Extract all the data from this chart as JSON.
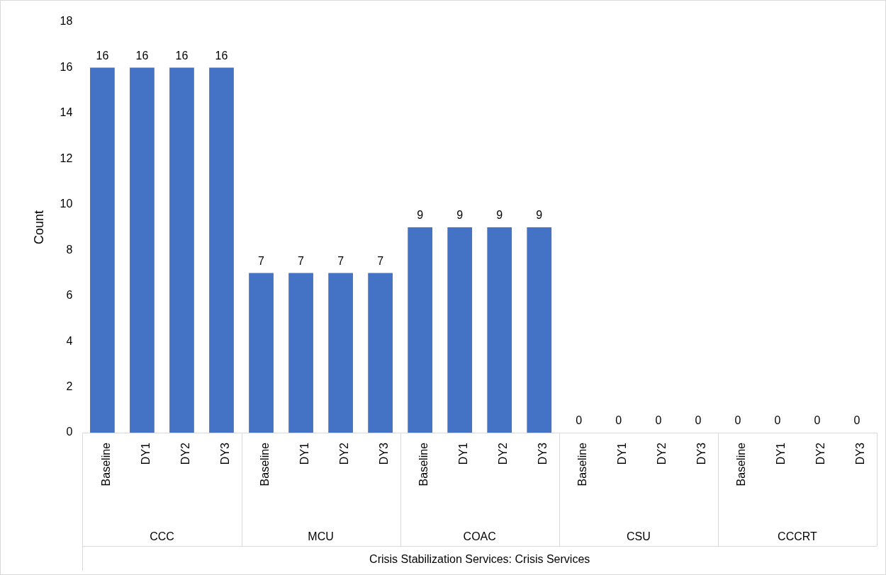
{
  "chart_data": {
    "type": "bar",
    "categories": [
      "Baseline",
      "DY1",
      "DY2",
      "DY3",
      "Baseline",
      "DY1",
      "DY2",
      "DY3",
      "Baseline",
      "DY1",
      "DY2",
      "DY3",
      "Baseline",
      "DY1",
      "DY2",
      "DY3",
      "Baseline",
      "DY1",
      "DY2",
      "DY3"
    ],
    "values": [
      16,
      16,
      16,
      16,
      7,
      7,
      7,
      7,
      9,
      9,
      9,
      9,
      0,
      0,
      0,
      0,
      0,
      0,
      0,
      0
    ],
    "color": "#4472c4",
    "ylabel": "Count",
    "annotations": [
      "CCC",
      "MCU",
      "COAC",
      "CSU",
      "CCCRT",
      "Crisis Stabilization Services: Crisis Services"
    ],
    "ylim": [
      0,
      18
    ],
    "yticks": [
      0,
      2,
      4,
      6,
      8,
      10,
      12,
      14,
      16,
      18
    ],
    "data_labels": true,
    "grid": false,
    "legend": false
  }
}
